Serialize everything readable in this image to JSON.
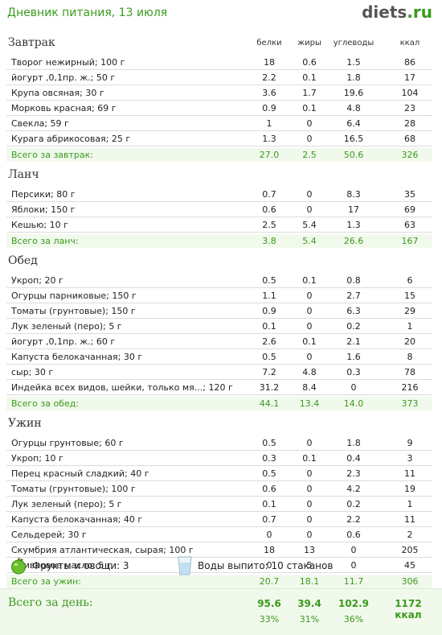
{
  "header": {
    "title": "Дневник питания, 13 июля",
    "logo_main": "diets",
    "logo_tld": ".ru"
  },
  "columns": [
    "белки",
    "жиры",
    "углеводы",
    "ккал"
  ],
  "meals": [
    {
      "name": "Завтрак",
      "items": [
        [
          "Творог нежирный; 100 г",
          "18",
          "0.6",
          "1.5",
          "86"
        ],
        [
          "йогурт ,0,1пр. ж.; 50 г",
          "2.2",
          "0.1",
          "1.8",
          "17"
        ],
        [
          "Крупа овсяная; 30 г",
          "3.6",
          "1.7",
          "19.6",
          "104"
        ],
        [
          "Морковь красная; 69 г",
          "0.9",
          "0.1",
          "4.8",
          "23"
        ],
        [
          "Свекла; 59 г",
          "1",
          "0",
          "6.4",
          "28"
        ],
        [
          "Курага абрикосовая; 25 г",
          "1.3",
          "0",
          "16.5",
          "68"
        ]
      ],
      "total": [
        "Всего за завтрак:",
        "27.0",
        "2.5",
        "50.6",
        "326"
      ]
    },
    {
      "name": "Ланч",
      "items": [
        [
          "Персики; 80 г",
          "0.7",
          "0",
          "8.3",
          "35"
        ],
        [
          "Яблоки; 150 г",
          "0.6",
          "0",
          "17",
          "69"
        ],
        [
          "Кешью; 10 г",
          "2.5",
          "5.4",
          "1.3",
          "63"
        ]
      ],
      "total": [
        "Всего за ланч:",
        "3.8",
        "5.4",
        "26.6",
        "167"
      ]
    },
    {
      "name": "Обед",
      "items": [
        [
          "Укроп; 20 г",
          "0.5",
          "0.1",
          "0.8",
          "6"
        ],
        [
          "Огурцы парниковые; 150 г",
          "1.1",
          "0",
          "2.7",
          "15"
        ],
        [
          "Томаты (грунтовые); 150 г",
          "0.9",
          "0",
          "6.3",
          "29"
        ],
        [
          "Лук зеленый (перо); 5 г",
          "0.1",
          "0",
          "0.2",
          "1"
        ],
        [
          "йогурт ,0,1пр. ж.; 60 г",
          "2.6",
          "0.1",
          "2.1",
          "20"
        ],
        [
          "Капуста белокачанная; 30 г",
          "0.5",
          "0",
          "1.6",
          "8"
        ],
        [
          "сыр; 30 г",
          "7.2",
          "4.8",
          "0.3",
          "78"
        ],
        [
          "Индейка всех видов, шейки, только мя...; 120 г",
          "31.2",
          "8.4",
          "0",
          "216"
        ]
      ],
      "total": [
        "Всего за обед:",
        "44.1",
        "13.4",
        "14.0",
        "373"
      ]
    },
    {
      "name": "Ужин",
      "items": [
        [
          "Огурцы грунтовые; 60 г",
          "0.5",
          "0",
          "1.8",
          "9"
        ],
        [
          "Укроп; 10 г",
          "0.3",
          "0.1",
          "0.4",
          "3"
        ],
        [
          "Перец красный сладкий; 40 г",
          "0.5",
          "0",
          "2.3",
          "11"
        ],
        [
          "Томаты (грунтовые); 100 г",
          "0.6",
          "0",
          "4.2",
          "19"
        ],
        [
          "Лук зеленый (перо); 5 г",
          "0.1",
          "0",
          "0.2",
          "1"
        ],
        [
          "Капуста белокачанная; 40 г",
          "0.7",
          "0",
          "2.2",
          "11"
        ],
        [
          "Сельдерей; 30 г",
          "0",
          "0",
          "0.6",
          "2"
        ],
        [
          "Скумбрия атлантическая, сырая; 100 г",
          "18",
          "13",
          "0",
          "205"
        ],
        [
          "Оливковое масло; 5 г",
          "0",
          "5",
          "0",
          "45"
        ]
      ],
      "total": [
        "Всего за ужин:",
        "20.7",
        "18.1",
        "11.7",
        "306"
      ]
    }
  ],
  "extras": {
    "fruits_label": "Фрукты и овощи: 3",
    "water_label": "Воды выпито: 10 стаканов",
    "fruits_icon": "apple-icon",
    "water_icon": "water-glass-icon"
  },
  "day_total": {
    "label": "Всего за день:",
    "values": [
      "95.6",
      "39.4",
      "102.9",
      "1172 ккал"
    ],
    "percents": [
      "33%",
      "31%",
      "36%"
    ]
  },
  "colors": {
    "accent": "#3a9b1c",
    "total_bg": "#f1f9ec"
  }
}
